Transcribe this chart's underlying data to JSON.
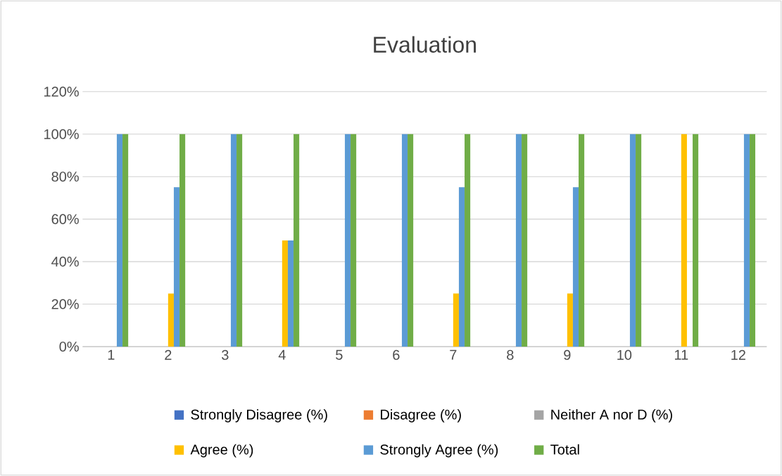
{
  "chart_data": {
    "type": "bar",
    "title": "Evaluation",
    "categories": [
      "1",
      "2",
      "3",
      "4",
      "5",
      "6",
      "7",
      "8",
      "9",
      "10",
      "11",
      "12"
    ],
    "series": [
      {
        "name": "Strongly Disagree (%)",
        "color": "#4472c4",
        "values": [
          0,
          0,
          0,
          0,
          0,
          0,
          0,
          0,
          0,
          0,
          0,
          0
        ]
      },
      {
        "name": "Disagree (%)",
        "color": "#ed7d31",
        "values": [
          0,
          0,
          0,
          0,
          0,
          0,
          0,
          0,
          0,
          0,
          0,
          0
        ]
      },
      {
        "name": "Neither A nor D (%)",
        "color": "#a5a5a5",
        "values": [
          0,
          0,
          0,
          0,
          0,
          0,
          0,
          0,
          0,
          0,
          0,
          0
        ]
      },
      {
        "name": "Agree (%)",
        "color": "#ffc000",
        "values": [
          0,
          25,
          0,
          50,
          0,
          0,
          25,
          0,
          25,
          0,
          100,
          0
        ]
      },
      {
        "name": "Strongly Agree (%)",
        "color": "#5b9bd5",
        "values": [
          100,
          75,
          100,
          50,
          100,
          100,
          75,
          100,
          75,
          100,
          0,
          100
        ]
      },
      {
        "name": "Total",
        "color": "#70ad47",
        "values": [
          100,
          100,
          100,
          100,
          100,
          100,
          100,
          100,
          100,
          100,
          100,
          100
        ]
      }
    ],
    "ylim": [
      0,
      120
    ],
    "yticks": [
      {
        "value": 0,
        "label": "0%"
      },
      {
        "value": 20,
        "label": "20%"
      },
      {
        "value": 40,
        "label": "40%"
      },
      {
        "value": 60,
        "label": "60%"
      },
      {
        "value": 80,
        "label": "80%"
      },
      {
        "value": 100,
        "label": "100%"
      },
      {
        "value": 120,
        "label": "120%"
      }
    ],
    "grid": "y",
    "legend": "bottom"
  }
}
